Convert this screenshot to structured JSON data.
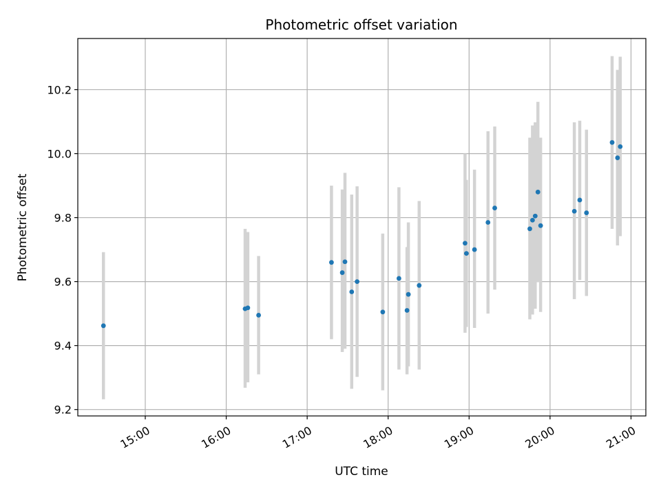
{
  "chart_data": {
    "type": "scatter",
    "title": "Photometric offset variation",
    "xlabel": "UTC time",
    "ylabel": "Photometric offset",
    "x_unit": "UTC clock time (HH:MM)",
    "xlim": [
      "14:10",
      "21:11"
    ],
    "ylim": [
      9.18,
      10.36
    ],
    "grid": true,
    "x_ticks": [
      "15:00",
      "16:00",
      "17:00",
      "18:00",
      "19:00",
      "20:00",
      "21:00"
    ],
    "y_ticks": [
      "9.2",
      "9.4",
      "9.6",
      "9.8",
      "10.0",
      "10.2"
    ],
    "y_tick_values": [
      9.2,
      9.4,
      9.6,
      9.8,
      10.0,
      10.2
    ],
    "marker_color": "#1f77b4",
    "errorbar_color": "#d3d3d3",
    "points": [
      {
        "time": "14:29",
        "y": 9.462,
        "err_low": 9.232,
        "err_high": 9.692
      },
      {
        "time": "16:14",
        "y": 9.515,
        "err_low": 9.268,
        "err_high": 9.765
      },
      {
        "time": "16:16",
        "y": 9.518,
        "err_low": 9.285,
        "err_high": 9.755
      },
      {
        "time": "16:24",
        "y": 9.495,
        "err_low": 9.31,
        "err_high": 9.68
      },
      {
        "time": "17:18",
        "y": 9.66,
        "err_low": 9.42,
        "err_high": 9.9
      },
      {
        "time": "17:26",
        "y": 9.628,
        "err_low": 9.38,
        "err_high": 9.888
      },
      {
        "time": "17:28",
        "y": 9.662,
        "err_low": 9.39,
        "err_high": 9.94
      },
      {
        "time": "17:33",
        "y": 9.568,
        "err_low": 9.265,
        "err_high": 9.872
      },
      {
        "time": "17:37",
        "y": 9.6,
        "err_low": 9.302,
        "err_high": 9.898
      },
      {
        "time": "17:56",
        "y": 9.505,
        "err_low": 9.26,
        "err_high": 9.75
      },
      {
        "time": "18:08",
        "y": 9.61,
        "err_low": 9.325,
        "err_high": 9.895
      },
      {
        "time": "18:14",
        "y": 9.51,
        "err_low": 9.31,
        "err_high": 9.708
      },
      {
        "time": "18:15",
        "y": 9.56,
        "err_low": 9.335,
        "err_high": 9.785
      },
      {
        "time": "18:23",
        "y": 9.588,
        "err_low": 9.325,
        "err_high": 9.852
      },
      {
        "time": "18:57",
        "y": 9.72,
        "err_low": 9.44,
        "err_high": 10.0
      },
      {
        "time": "18:58",
        "y": 9.688,
        "err_low": 9.458,
        "err_high": 9.918
      },
      {
        "time": "19:04",
        "y": 9.7,
        "err_low": 9.455,
        "err_high": 9.95
      },
      {
        "time": "19:14",
        "y": 9.785,
        "err_low": 9.5,
        "err_high": 10.07
      },
      {
        "time": "19:19",
        "y": 9.83,
        "err_low": 9.575,
        "err_high": 10.085
      },
      {
        "time": "19:45",
        "y": 9.765,
        "err_low": 9.482,
        "err_high": 10.05
      },
      {
        "time": "19:47",
        "y": 9.792,
        "err_low": 9.497,
        "err_high": 10.088
      },
      {
        "time": "19:49",
        "y": 9.805,
        "err_low": 9.515,
        "err_high": 10.098
      },
      {
        "time": "19:51",
        "y": 9.88,
        "err_low": 9.598,
        "err_high": 10.162
      },
      {
        "time": "19:53",
        "y": 9.775,
        "err_low": 9.505,
        "err_high": 10.05
      },
      {
        "time": "20:18",
        "y": 9.82,
        "err_low": 9.545,
        "err_high": 10.098
      },
      {
        "time": "20:22",
        "y": 9.855,
        "err_low": 9.605,
        "err_high": 10.103
      },
      {
        "time": "20:27",
        "y": 9.815,
        "err_low": 9.555,
        "err_high": 10.075
      },
      {
        "time": "20:46",
        "y": 10.035,
        "err_low": 9.765,
        "err_high": 10.305
      },
      {
        "time": "20:50",
        "y": 9.987,
        "err_low": 9.713,
        "err_high": 10.262
      },
      {
        "time": "20:52",
        "y": 10.022,
        "err_low": 9.742,
        "err_high": 10.303
      }
    ]
  }
}
